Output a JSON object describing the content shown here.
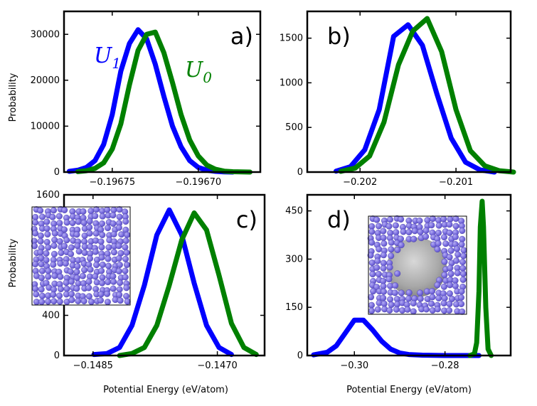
{
  "figure": {
    "shared_xlabel": "Potential Energy (eV/atom)",
    "shared_ylabel": "Probability",
    "colors": {
      "U1": "#0000ff",
      "U0": "#008000",
      "atom": "#7b6fe0"
    }
  },
  "legend": {
    "u1": {
      "base": "U",
      "sub": "1"
    },
    "u0": {
      "base": "U",
      "sub": "0"
    }
  },
  "chart_data": [
    {
      "panel": "a)",
      "type": "line",
      "xlim": [
        -0.196778,
        -0.196664
      ],
      "ylim": [
        0,
        35000
      ],
      "xticks": [
        -0.19675,
        -0.1967
      ],
      "xtick_labels": [
        "−0.19675",
        "−0.19670"
      ],
      "yticks": [
        0,
        10000,
        20000,
        30000
      ],
      "ytick_labels": [
        "0",
        "10000",
        "20000",
        "30000"
      ],
      "ylabel": "Probability",
      "xlabel": "",
      "series": [
        {
          "name": "U1",
          "x": [
            -0.196775,
            -0.19677,
            -0.196765,
            -0.19676,
            -0.196755,
            -0.19675,
            -0.196745,
            -0.19674,
            -0.196735,
            -0.19673,
            -0.196725,
            -0.19672,
            -0.196715,
            -0.19671,
            -0.196705,
            -0.1967,
            -0.196695,
            -0.19669,
            -0.196685,
            -0.19668
          ],
          "y": [
            150,
            400,
            1000,
            2500,
            6000,
            12500,
            22000,
            28000,
            31000,
            29000,
            23500,
            16500,
            10000,
            5500,
            2500,
            1000,
            400,
            150,
            50,
            0
          ]
        },
        {
          "name": "U0",
          "x": [
            -0.19677,
            -0.196765,
            -0.19676,
            -0.196755,
            -0.19675,
            -0.196745,
            -0.19674,
            -0.196735,
            -0.19673,
            -0.196725,
            -0.19672,
            -0.196715,
            -0.19671,
            -0.196705,
            -0.1967,
            -0.196695,
            -0.19669,
            -0.196685,
            -0.19668,
            -0.196675,
            -0.19667
          ],
          "y": [
            100,
            300,
            800,
            2000,
            5000,
            10500,
            19000,
            26500,
            30000,
            30500,
            26000,
            19500,
            12500,
            7000,
            3500,
            1500,
            600,
            200,
            80,
            30,
            0
          ]
        }
      ]
    },
    {
      "panel": "b)",
      "type": "line",
      "xlim": [
        -0.20255,
        -0.20043
      ],
      "ylim": [
        0,
        1800
      ],
      "xticks": [
        -0.202,
        -0.201
      ],
      "xtick_labels": [
        "−0.202",
        "−0.201"
      ],
      "yticks": [
        0,
        500,
        1000,
        1500
      ],
      "ytick_labels": [
        "0",
        "500",
        "1000",
        "1500"
      ],
      "ylabel": "",
      "xlabel": "",
      "series": [
        {
          "name": "U1",
          "x": [
            -0.20225,
            -0.2021,
            -0.20195,
            -0.2018,
            -0.20165,
            -0.2015,
            -0.20135,
            -0.2012,
            -0.20105,
            -0.2009,
            -0.20075,
            -0.2006
          ],
          "y": [
            10,
            60,
            250,
            700,
            1520,
            1650,
            1420,
            880,
            380,
            110,
            25,
            0
          ]
        },
        {
          "name": "U0",
          "x": [
            -0.2022,
            -0.20205,
            -0.2019,
            -0.20175,
            -0.2016,
            -0.20145,
            -0.2013,
            -0.20115,
            -0.201,
            -0.20085,
            -0.2007,
            -0.20055,
            -0.2004
          ],
          "y": [
            8,
            45,
            180,
            560,
            1200,
            1580,
            1720,
            1350,
            700,
            240,
            70,
            15,
            0
          ]
        }
      ]
    },
    {
      "panel": "c)",
      "type": "line",
      "xlim": [
        -0.14885,
        -0.14643
      ],
      "ylim": [
        0,
        1600
      ],
      "xticks": [
        -0.1485,
        -0.147
      ],
      "xtick_labels": [
        "−0.1485",
        "−0.1470"
      ],
      "yticks": [
        0,
        400,
        1600
      ],
      "ytick_labels": [
        "0",
        "400",
        "1600"
      ],
      "ylabel": "Probability",
      "xlabel": "Potential Energy (eV/atom)",
      "series": [
        {
          "name": "U1",
          "x": [
            -0.14849,
            -0.14833,
            -0.14818,
            -0.14803,
            -0.14788,
            -0.14773,
            -0.14758,
            -0.14743,
            -0.14728,
            -0.14713,
            -0.14698,
            -0.14683
          ],
          "y": [
            10,
            20,
            80,
            300,
            700,
            1200,
            1450,
            1200,
            720,
            300,
            80,
            10
          ]
        },
        {
          "name": "U0",
          "x": [
            -0.14818,
            -0.14803,
            -0.14788,
            -0.14773,
            -0.14758,
            -0.14743,
            -0.14728,
            -0.14713,
            -0.14698,
            -0.14683,
            -0.14668,
            -0.14653
          ],
          "y": [
            0,
            20,
            80,
            300,
            700,
            1150,
            1420,
            1250,
            800,
            320,
            80,
            10
          ]
        }
      ]
    },
    {
      "panel": "d)",
      "type": "line",
      "xlim": [
        -0.3104,
        -0.2655
      ],
      "ylim": [
        0,
        500
      ],
      "xticks": [
        -0.3,
        -0.28
      ],
      "xtick_labels": [
        "−0.30",
        "−0.28"
      ],
      "yticks": [
        0,
        150,
        300,
        450
      ],
      "ytick_labels": [
        "0",
        "150",
        "300",
        "450"
      ],
      "ylabel": "",
      "xlabel": "Potential Energy (eV/atom)",
      "series": [
        {
          "name": "U1",
          "x": [
            -0.309,
            -0.306,
            -0.304,
            -0.302,
            -0.3,
            -0.298,
            -0.296,
            -0.294,
            -0.292,
            -0.29,
            -0.288,
            -0.285,
            -0.28,
            -0.275,
            -0.2725
          ],
          "y": [
            2,
            10,
            30,
            70,
            110,
            110,
            80,
            45,
            20,
            8,
            3,
            1,
            0,
            0,
            0
          ]
        },
        {
          "name": "U0",
          "x": [
            -0.2745,
            -0.2735,
            -0.273,
            -0.2725,
            -0.2722,
            -0.2718,
            -0.2715,
            -0.271,
            -0.2705,
            -0.2698
          ],
          "y": [
            0,
            5,
            40,
            200,
            400,
            480,
            400,
            150,
            20,
            0
          ]
        }
      ]
    }
  ]
}
